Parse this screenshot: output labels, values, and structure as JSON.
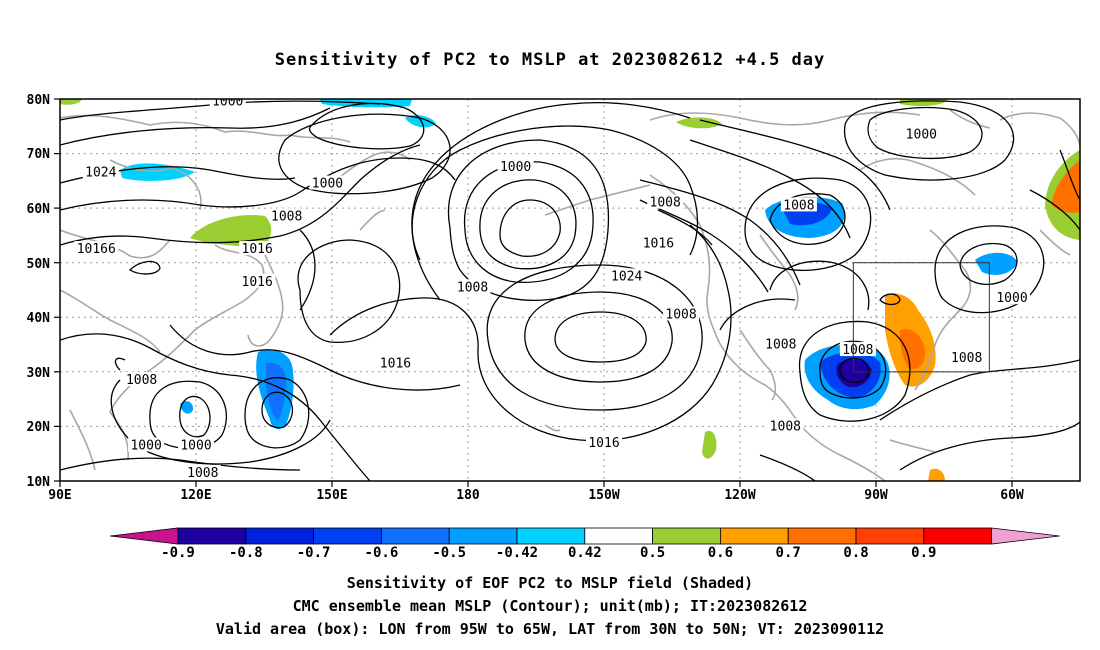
{
  "title": "Sensitivity of PC2 to MSLP at 2023082612 +4.5 day",
  "captions": {
    "line1": "Sensitivity of EOF PC2 to MSLP field (Shaded)",
    "line2": "CMC ensemble mean MSLP (Contour); unit(mb); IT:2023082612",
    "line3": "Valid area (box): LON from 95W to 65W, LAT from 30N to 50N; VT: 2023090112"
  },
  "map": {
    "lon_labels": [
      "90E",
      "120E",
      "150E",
      "180",
      "150W",
      "120W",
      "90W",
      "60W"
    ],
    "lat_labels": [
      "10N",
      "20N",
      "30N",
      "40N",
      "50N",
      "60N",
      "70N",
      "80N"
    ],
    "domain": {
      "lon_min_e": 90,
      "lon_max_e": 315,
      "lat_min": 10,
      "lat_max": 80
    },
    "grid": "dotted",
    "valid_box": {
      "lon_w": 95,
      "lon_e": 65,
      "lat_s": 30,
      "lat_n": 50
    },
    "contour_labels": [
      {
        "text": "1000",
        "lon": 127,
        "lat": 79.5
      },
      {
        "text": "1024",
        "lon": 99,
        "lat": 66.5
      },
      {
        "text": "1000",
        "lon": 149,
        "lat": 64.5
      },
      {
        "text": "1000",
        "lon": 190.5,
        "lat": 67.5
      },
      {
        "text": "1008",
        "lon": 140,
        "lat": 58.5
      },
      {
        "text": "10166",
        "lon": 98,
        "lat": 52.5
      },
      {
        "text": "1016",
        "lon": 133.5,
        "lat": 52.5
      },
      {
        "text": "1016",
        "lon": 133.5,
        "lat": 46.5
      },
      {
        "text": "1008",
        "lon": 181,
        "lat": 45.5
      },
      {
        "text": "1024",
        "lon": 215,
        "lat": 47.5
      },
      {
        "text": "1016",
        "lon": 222,
        "lat": 53.5
      },
      {
        "text": "1008",
        "lon": 223.5,
        "lat": 61
      },
      {
        "text": "1008",
        "lon": 253,
        "lat": 60.5
      },
      {
        "text": "1000",
        "lon": 280,
        "lat": 73.5
      },
      {
        "text": "1008",
        "lon": 227,
        "lat": 40.5
      },
      {
        "text": "1008",
        "lon": 249,
        "lat": 35
      },
      {
        "text": "1008",
        "lon": 266,
        "lat": 34
      },
      {
        "text": "1000",
        "lon": 300,
        "lat": 43.5
      },
      {
        "text": "1008",
        "lon": 290,
        "lat": 32.5
      },
      {
        "text": "1016",
        "lon": 164,
        "lat": 31.5
      },
      {
        "text": "1008",
        "lon": 108,
        "lat": 28.5
      },
      {
        "text": "1000",
        "lon": 109,
        "lat": 16.5
      },
      {
        "text": "1000",
        "lon": 120,
        "lat": 16.5
      },
      {
        "text": "1016",
        "lon": 210,
        "lat": 17
      },
      {
        "text": "1008",
        "lon": 250,
        "lat": 20
      },
      {
        "text": "1008",
        "lon": 121.5,
        "lat": 11.5
      }
    ]
  },
  "colorbar": {
    "labels": [
      "-0.9",
      "-0.8",
      "-0.7",
      "-0.6",
      "-0.5",
      "-0.42",
      "0.42",
      "0.5",
      "0.6",
      "0.7",
      "0.8",
      "0.9"
    ],
    "colors": [
      "#1e00a0",
      "#0020dc",
      "#0040f0",
      "#1070ff",
      "#00a0ff",
      "#00d2ff",
      "#ffffff",
      "#9acd32",
      "#ffa000",
      "#ff7000",
      "#ff4000",
      "#ff0000"
    ],
    "low_extend_color": "#c8148c",
    "high_extend_color": "#f0a0d2"
  }
}
